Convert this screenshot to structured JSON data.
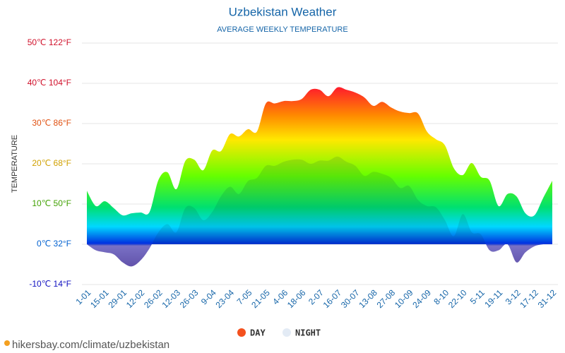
{
  "chart_data": {
    "type": "area",
    "title": "Uzbekistan Weather",
    "subtitle": "AVERAGE WEEKLY TEMPERATURE",
    "y_axis_label": "TEMPERATURE",
    "source": "hikersbay.com/climate/uzbekistan",
    "categories": [
      "1-01",
      null,
      "15-01",
      null,
      "29-01",
      null,
      "12-02",
      null,
      "26-02",
      null,
      "12-03",
      null,
      "26-03",
      null,
      "9-04",
      null,
      "23-04",
      null,
      "7-05",
      null,
      "21-05",
      null,
      "4-06",
      null,
      "18-06",
      null,
      "2-07",
      null,
      "16-07",
      null,
      "30-07",
      null,
      "13-08",
      null,
      "27-08",
      null,
      "10-09",
      null,
      "24-09",
      null,
      "8-10",
      null,
      "22-10",
      null,
      "5-11",
      null,
      "19-11",
      null,
      "3-12",
      null,
      "17-12",
      null,
      "31-12"
    ],
    "series": [
      {
        "name": "DAY",
        "color": "#f4511e",
        "values": [
          13.3,
          9.5,
          10.7,
          9,
          7.2,
          7.7,
          7.9,
          8,
          16,
          17.9,
          13.7,
          20.7,
          21,
          18.4,
          23.3,
          23.2,
          27.4,
          26.8,
          28.6,
          28,
          35,
          35,
          35.6,
          35.6,
          36.1,
          38.4,
          38.4,
          36.8,
          39,
          38.4,
          37.7,
          36.5,
          34.4,
          35.4,
          34,
          33,
          32.6,
          32.5,
          28,
          26.1,
          24.6,
          18.9,
          17.2,
          20.2,
          16.8,
          15.8,
          9.5,
          12.5,
          11.9,
          7.7,
          7.2,
          11.6,
          15.8
        ]
      },
      {
        "name": "NIGHT",
        "color": "#e3ebf5",
        "values": [
          0,
          -1.5,
          -2,
          -2.5,
          -4.5,
          -5.5,
          -4,
          -1,
          3,
          5,
          3,
          9,
          9,
          6,
          8,
          12,
          14.3,
          12.5,
          15.7,
          16.5,
          19.5,
          19.5,
          20.5,
          21,
          21,
          20,
          20.8,
          20.8,
          21.8,
          20.5,
          19.5,
          17,
          18,
          17.5,
          16.5,
          14,
          14.5,
          11,
          9.5,
          9.2,
          6,
          2,
          7.5,
          3,
          2.5,
          -1.5,
          -1.5,
          0,
          -4.5,
          -2,
          -0.5,
          0,
          0
        ]
      }
    ],
    "ylim": [
      -10,
      50
    ],
    "yticks": [
      {
        "value": -10,
        "label": "-10℃ 14°F"
      },
      {
        "value": 0,
        "label": "0℃ 32°F"
      },
      {
        "value": 10,
        "label": "10℃ 50°F"
      },
      {
        "value": 20,
        "label": "20℃ 68°F"
      },
      {
        "value": 30,
        "label": "30℃ 86°F"
      },
      {
        "value": 40,
        "label": "40℃ 104°F"
      },
      {
        "value": 50,
        "label": "50℃ 122°F"
      }
    ],
    "grid": true
  }
}
